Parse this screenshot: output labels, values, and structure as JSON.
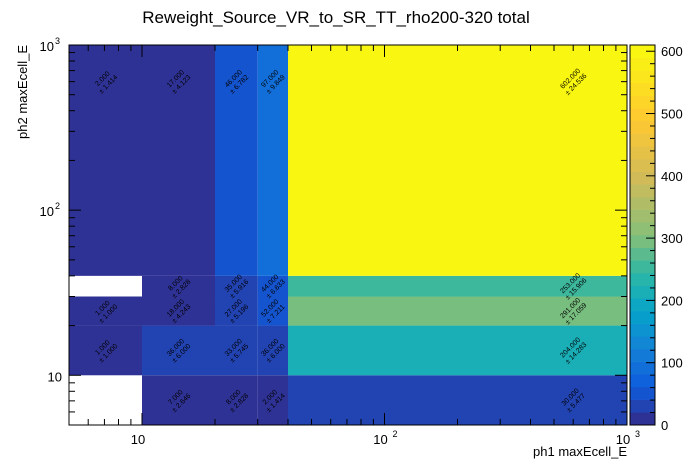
{
  "chart_data": {
    "type": "heatmap",
    "title": "Reweight_Source_VR_to_SR_TT_rho200-320 total",
    "xlabel": "ph1 maxEcell_E",
    "ylabel": "ph2 maxEcell_E",
    "xscale": "log",
    "yscale": "log",
    "xlim": [
      5,
      1000
    ],
    "ylim": [
      5,
      1000
    ],
    "x_ticks": [
      {
        "base": "10",
        "exp": ""
      },
      {
        "base": "10",
        "exp": "2"
      },
      {
        "base": "10",
        "exp": "3"
      }
    ],
    "y_ticks": [
      {
        "base": "10",
        "exp": ""
      },
      {
        "base": "10",
        "exp": "2"
      },
      {
        "base": "10",
        "exp": "3"
      }
    ],
    "x_edges": [
      5,
      10,
      20,
      30,
      40,
      1000
    ],
    "y_edges": [
      5,
      10,
      20,
      30,
      40,
      1000
    ],
    "colorbar": {
      "min": 0,
      "max": 610,
      "ticks": [
        "0",
        "100",
        "200",
        "300",
        "400",
        "500",
        "600"
      ]
    },
    "cells": [
      {
        "ix": 0,
        "iy": 0,
        "value": 0,
        "empty": true,
        "label": "",
        "error": ""
      },
      {
        "ix": 1,
        "iy": 0,
        "value": 7,
        "label": "7.000",
        "error": "± 2.646"
      },
      {
        "ix": 2,
        "iy": 0,
        "value": 8,
        "label": "8.000",
        "error": "± 2.828"
      },
      {
        "ix": 3,
        "iy": 0,
        "value": 2,
        "label": "2.000",
        "error": "± 1.414"
      },
      {
        "ix": 4,
        "iy": 0,
        "value": 30,
        "label": "30.000",
        "error": "± 5.477"
      },
      {
        "ix": 0,
        "iy": 1,
        "value": 1,
        "label": "1.000",
        "error": "± 1.000"
      },
      {
        "ix": 1,
        "iy": 1,
        "value": 36,
        "label": "36.000",
        "error": "± 6.000"
      },
      {
        "ix": 2,
        "iy": 1,
        "value": 33,
        "label": "33.000",
        "error": "± 5.745"
      },
      {
        "ix": 3,
        "iy": 1,
        "value": 36,
        "label": "36.000",
        "error": "± 6.000"
      },
      {
        "ix": 4,
        "iy": 1,
        "value": 204,
        "label": "204.000",
        "error": "± 14.283"
      },
      {
        "ix": 0,
        "iy": 2,
        "value": 1,
        "label": "1.000",
        "error": "± 1.000"
      },
      {
        "ix": 1,
        "iy": 2,
        "value": 18,
        "label": "18.000",
        "error": "± 4.243"
      },
      {
        "ix": 2,
        "iy": 2,
        "value": 27,
        "label": "27.000",
        "error": "± 5.196"
      },
      {
        "ix": 3,
        "iy": 2,
        "value": 52,
        "label": "52.000",
        "error": "± 7.211"
      },
      {
        "ix": 4,
        "iy": 2,
        "value": 291,
        "label": "291.000",
        "error": "± 17.059"
      },
      {
        "ix": 0,
        "iy": 3,
        "value": 0,
        "empty": true,
        "label": "",
        "error": ""
      },
      {
        "ix": 1,
        "iy": 3,
        "value": 8,
        "label": "8.000",
        "error": "± 2.828"
      },
      {
        "ix": 2,
        "iy": 3,
        "value": 35,
        "label": "35.000",
        "error": "± 5.916"
      },
      {
        "ix": 3,
        "iy": 3,
        "value": 44,
        "label": "44.000",
        "error": "± 6.633"
      },
      {
        "ix": 4,
        "iy": 3,
        "value": 253,
        "label": "253.000",
        "error": "± 15.906"
      },
      {
        "ix": 0,
        "iy": 4,
        "value": 2,
        "label": "2.000",
        "error": "± 1.414"
      },
      {
        "ix": 1,
        "iy": 4,
        "value": 17,
        "label": "17.000",
        "error": "± 4.123"
      },
      {
        "ix": 2,
        "iy": 4,
        "value": 46,
        "label": "46.000",
        "error": "± 6.782"
      },
      {
        "ix": 3,
        "iy": 4,
        "value": 97,
        "label": "97.000",
        "error": "± 9.849"
      },
      {
        "ix": 4,
        "iy": 4,
        "value": 602,
        "label": "602.000",
        "error": "± 24.536"
      }
    ],
    "grid": false,
    "legend": "none"
  }
}
